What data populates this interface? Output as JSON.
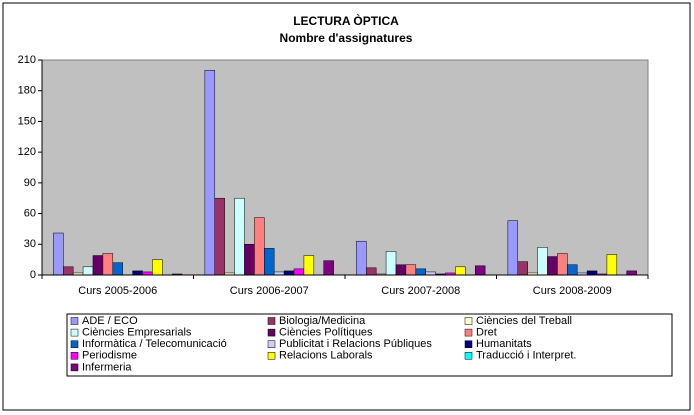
{
  "chart_data": {
    "type": "bar",
    "title": "LECTURA ÒPTICA",
    "subtitle": "Nombre d'assignatures",
    "categories": [
      "Curs 2005-2006",
      "Curs 2006-2007",
      "Curs 2007-2008",
      "Curs 2008-2009"
    ],
    "ylim": [
      0,
      210
    ],
    "yticks": [
      0,
      30,
      60,
      90,
      120,
      150,
      180,
      210
    ],
    "series": [
      {
        "name": "ADE / ECO",
        "color": "#9999FF",
        "values": [
          41,
          200,
          33,
          53
        ]
      },
      {
        "name": "Biologia/Medicina",
        "color": "#993366",
        "values": [
          8,
          75,
          7,
          13
        ]
      },
      {
        "name": "Ciències del Treball",
        "color": "#FFFFCC",
        "values": [
          2,
          2,
          1,
          2
        ]
      },
      {
        "name": "Ciències Empresarials",
        "color": "#CCFFFF",
        "values": [
          8,
          75,
          23,
          27
        ]
      },
      {
        "name": "Ciències Polítiques",
        "color": "#660066",
        "values": [
          19,
          30,
          10,
          18
        ]
      },
      {
        "name": "Dret",
        "color": "#FF8080",
        "values": [
          21,
          56,
          10,
          21
        ]
      },
      {
        "name": "Informàtica / Telecomunicació",
        "color": "#0066CC",
        "values": [
          12,
          26,
          6,
          10
        ]
      },
      {
        "name": "Publicitat i Relacions Públiques",
        "color": "#CCCCFF",
        "values": [
          0,
          3,
          3,
          2
        ]
      },
      {
        "name": "Humanitats",
        "color": "#000080",
        "values": [
          4,
          4,
          1,
          4
        ]
      },
      {
        "name": "Periodisme",
        "color": "#FF00FF",
        "values": [
          3,
          6,
          2,
          1
        ]
      },
      {
        "name": "Relacions Laborals",
        "color": "#FFFF00",
        "values": [
          15,
          19,
          8,
          20
        ]
      },
      {
        "name": "Traducció i Interpret.",
        "color": "#00FFFF",
        "values": [
          0,
          0,
          0,
          0
        ]
      },
      {
        "name": "Infermeria",
        "color": "#800080",
        "values": [
          1,
          14,
          9,
          4
        ]
      }
    ],
    "legend": "bottom",
    "plot_background": "#C0C0C0"
  }
}
